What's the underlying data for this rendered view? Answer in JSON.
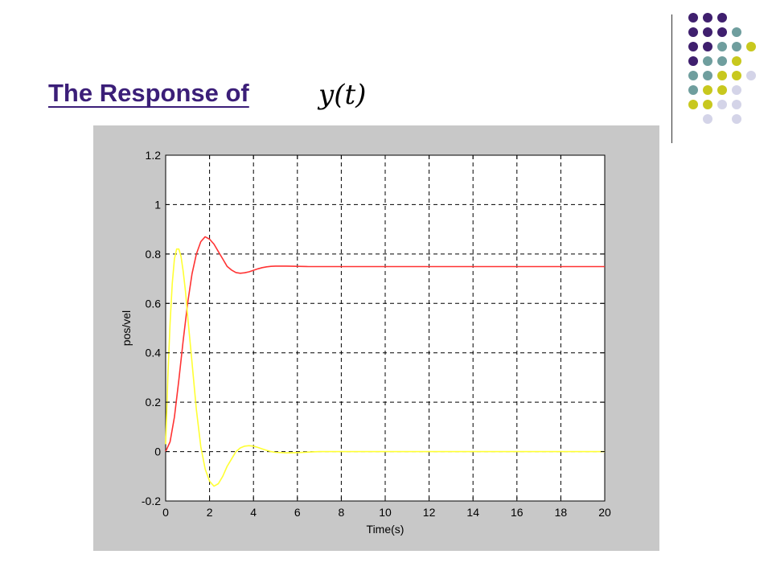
{
  "slide": {
    "title": "The Response of",
    "math": "y(t)"
  },
  "decoration": {
    "dot_colors": {
      "purple": "#3f1f6e",
      "teal": "#6f9e9e",
      "olive": "#c8c81e",
      "lavender": "#d4d4e8"
    },
    "dot_grid": [
      [
        "purple",
        "purple",
        "purple",
        null
      ],
      [
        "purple",
        "purple",
        "purple",
        "teal"
      ],
      [
        "purple",
        "purple",
        "teal",
        "teal",
        "olive"
      ],
      [
        "purple",
        "teal",
        "teal",
        "olive",
        null
      ],
      [
        "teal",
        "teal",
        "olive",
        "olive",
        "lavender"
      ],
      [
        "teal",
        "olive",
        "olive",
        "lavender",
        null
      ],
      [
        "olive",
        "olive",
        "lavender",
        "lavender",
        null
      ],
      [
        null,
        "lavender",
        null,
        "lavender",
        null
      ]
    ]
  },
  "chart_data": {
    "type": "line",
    "title": "",
    "xlabel": "Time(s)",
    "ylabel": "pos/vel",
    "xlim": [
      0,
      20
    ],
    "ylim": [
      -0.2,
      1.2
    ],
    "xticks": [
      "0",
      "2",
      "4",
      "6",
      "8",
      "10",
      "12",
      "14",
      "16",
      "18",
      "20"
    ],
    "yticks": [
      "-0.2",
      "0",
      "0.2",
      "0.4",
      "0.6",
      "0.8",
      "1",
      "1.2"
    ],
    "grid": true,
    "background": "#c8c8c8",
    "plot_background": "#ffffff",
    "series": [
      {
        "color": "#ff3333",
        "x": [
          0,
          0.2,
          0.4,
          0.6,
          0.8,
          1.0,
          1.2,
          1.4,
          1.6,
          1.8,
          2.0,
          2.2,
          2.4,
          2.6,
          2.8,
          3.0,
          3.2,
          3.4,
          3.6,
          3.8,
          4.0,
          4.2,
          4.4,
          4.6,
          4.8,
          5.0,
          5.5,
          6.0,
          6.5,
          7.0,
          8,
          10,
          12,
          14,
          16,
          18,
          20
        ],
        "y": [
          0,
          0.04,
          0.14,
          0.29,
          0.45,
          0.6,
          0.72,
          0.8,
          0.85,
          0.87,
          0.86,
          0.84,
          0.81,
          0.78,
          0.75,
          0.735,
          0.725,
          0.722,
          0.724,
          0.728,
          0.734,
          0.74,
          0.745,
          0.748,
          0.75,
          0.751,
          0.751,
          0.75,
          0.749,
          0.749,
          0.749,
          0.749,
          0.749,
          0.749,
          0.749,
          0.749,
          0.749
        ]
      },
      {
        "color": "#ffff33",
        "x": [
          0,
          0.1,
          0.2,
          0.3,
          0.4,
          0.5,
          0.6,
          0.7,
          0.8,
          0.9,
          1.0,
          1.2,
          1.4,
          1.6,
          1.8,
          2.0,
          2.2,
          2.4,
          2.6,
          2.8,
          3.0,
          3.2,
          3.4,
          3.6,
          3.8,
          4.0,
          4.2,
          4.4,
          4.6,
          4.8,
          5.0,
          5.5,
          6.0,
          6.5,
          7.0,
          8,
          10,
          12,
          14,
          16,
          18,
          20
        ],
        "y": [
          0.03,
          0.3,
          0.52,
          0.68,
          0.78,
          0.82,
          0.82,
          0.79,
          0.73,
          0.65,
          0.55,
          0.36,
          0.17,
          0.02,
          -0.07,
          -0.12,
          -0.14,
          -0.13,
          -0.1,
          -0.06,
          -0.03,
          0.0,
          0.015,
          0.022,
          0.024,
          0.022,
          0.017,
          0.011,
          0.005,
          0.0,
          -0.003,
          -0.005,
          -0.004,
          -0.002,
          0.0,
          0.0,
          0.0,
          0.0,
          0.0,
          0.0,
          0.0,
          0.0
        ]
      }
    ]
  }
}
